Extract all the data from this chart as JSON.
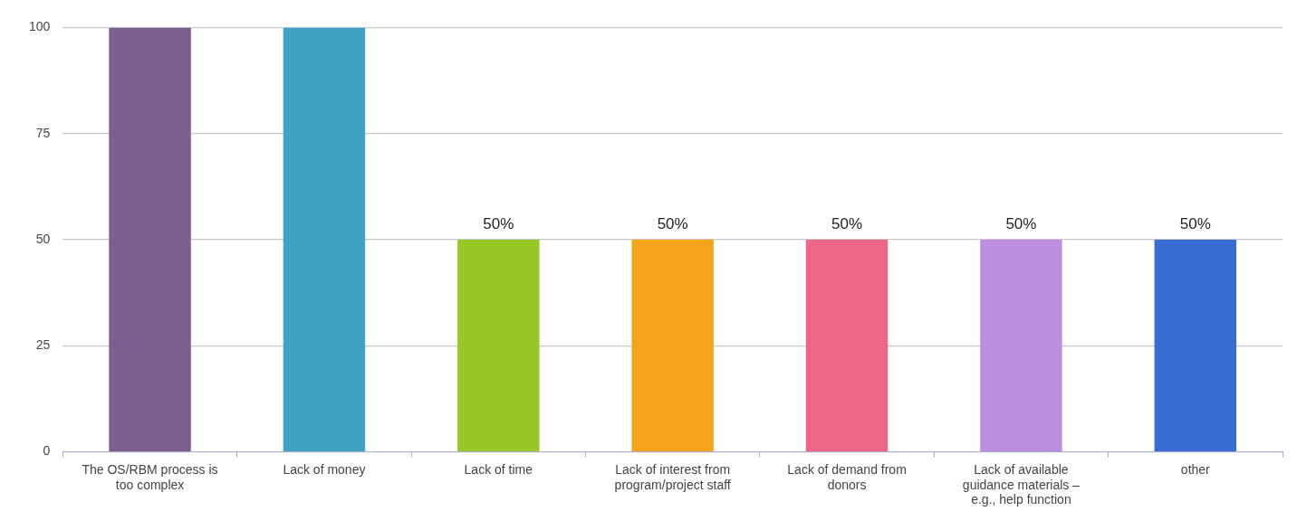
{
  "chart_data": {
    "type": "bar",
    "categories": [
      "The OS/RBM process is too complex",
      "Lack of money",
      "Lack of time",
      "Lack of interest from program/project staff",
      "Lack of demand from donors",
      "Lack of available guidance materials – e.g., help function",
      "other"
    ],
    "values": [
      100,
      100,
      50,
      50,
      50,
      50,
      50
    ],
    "colors": [
      "#7a5f8f",
      "#3ea3c2",
      "#98c826",
      "#f4a31b",
      "#ef6585",
      "#bd8fe0",
      "#386bd3"
    ],
    "value_labels": [
      null,
      null,
      "50%",
      "50%",
      "50%",
      "50%",
      "50%"
    ],
    "ylim": [
      0,
      100
    ],
    "yticks": [
      0,
      25,
      50,
      75,
      100
    ],
    "grid": "y",
    "legend": false
  }
}
